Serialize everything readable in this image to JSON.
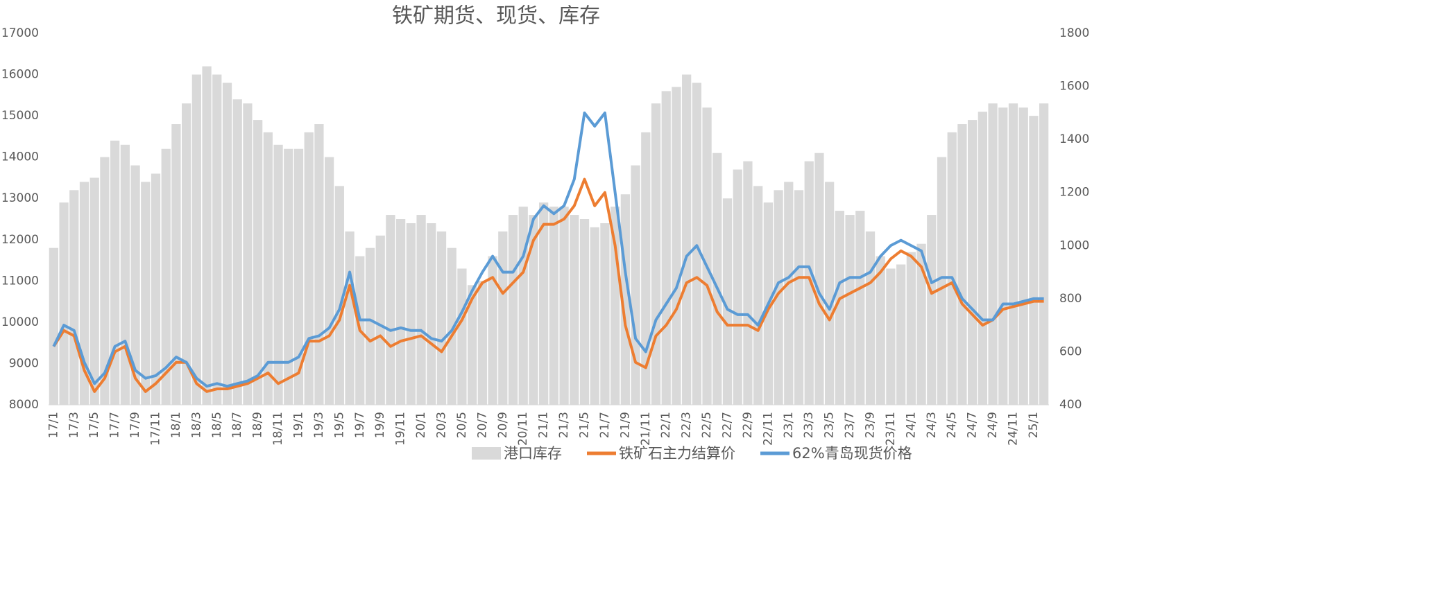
{
  "chart_data": {
    "type": "bar",
    "title": "铁矿期货、现货、库存",
    "categories": [
      "17/1",
      null,
      "17/3",
      null,
      "17/5",
      null,
      "17/7",
      null,
      "17/9",
      null,
      "17/11",
      null,
      "18/1",
      null,
      "18/3",
      null,
      "18/5",
      null,
      "18/7",
      null,
      "18/9",
      null,
      "18/11",
      null,
      "19/1",
      null,
      "19/3",
      null,
      "19/5",
      null,
      "19/7",
      null,
      "19/9",
      null,
      "19/11",
      null,
      "20/1",
      null,
      "20/3",
      null,
      "20/5",
      null,
      "20/7",
      null,
      "20/9",
      null,
      "20/11",
      null,
      "21/1",
      null,
      "21/3",
      null,
      "21/5",
      null,
      "21/7",
      null,
      "21/9",
      null,
      "21/11",
      null,
      "22/1",
      null,
      "22/3",
      null,
      "22/5",
      null,
      "22/7",
      null,
      "22/9",
      null,
      "22/11",
      null,
      "23/1",
      null,
      "23/3",
      null,
      "23/5",
      null,
      "23/7",
      null,
      "23/9",
      null,
      "23/11",
      null,
      "24/1",
      null,
      "24/3",
      null,
      "24/5",
      null,
      "24/7",
      null,
      "24/9",
      null,
      "24/11",
      null,
      "25/1",
      null
    ],
    "series": [
      {
        "name": "港口库存",
        "type": "bar",
        "color": "#d9d9d9",
        "values": [
          11800,
          12900,
          13200,
          13400,
          13500,
          14000,
          14400,
          14300,
          13800,
          13400,
          13600,
          14200,
          14800,
          15300,
          16000,
          16200,
          16000,
          15800,
          15400,
          15300,
          14900,
          14600,
          14300,
          14200,
          14200,
          14600,
          14800,
          14000,
          13300,
          12200,
          11600,
          11800,
          12100,
          12600,
          12500,
          12400,
          12600,
          12400,
          12200,
          11800,
          11300,
          10900,
          11000,
          11600,
          12200,
          12600,
          12800,
          12600,
          12900,
          12800,
          12800,
          12600,
          12500,
          12300,
          12400,
          12800,
          13100,
          13800,
          14600,
          15300,
          15600,
          15700,
          16000,
          15800,
          15200,
          14100,
          13000,
          13700,
          13900,
          13300,
          12900,
          13200,
          13400,
          13200,
          13900,
          14100,
          13400,
          12700,
          12600,
          12700,
          12200,
          11600,
          11300,
          11400,
          11700,
          11900,
          12600,
          14000,
          14600,
          14800,
          14900,
          15100,
          15300,
          15200,
          15300,
          15200,
          15000,
          15300
        ]
      },
      {
        "name": "铁矿石主力结算价",
        "type": "line",
        "axis": "y2",
        "color": "#ed7d31",
        "values": [
          620,
          680,
          660,
          530,
          450,
          500,
          600,
          620,
          500,
          450,
          480,
          520,
          560,
          560,
          480,
          450,
          460,
          460,
          470,
          480,
          500,
          520,
          480,
          500,
          520,
          640,
          640,
          660,
          720,
          850,
          680,
          640,
          660,
          620,
          640,
          650,
          660,
          630,
          600,
          660,
          720,
          800,
          860,
          880,
          820,
          860,
          900,
          1020,
          1080,
          1080,
          1100,
          1150,
          1250,
          1150,
          1200,
          1000,
          700,
          560,
          540,
          660,
          700,
          760,
          860,
          880,
          850,
          750,
          700,
          700,
          700,
          680,
          760,
          820,
          860,
          880,
          880,
          780,
          720,
          800,
          820,
          840,
          860,
          900,
          950,
          980,
          960,
          920,
          820,
          840,
          860,
          780,
          740,
          700,
          720,
          760,
          770,
          780,
          790,
          790
        ]
      },
      {
        "name": "62%青岛现货价格",
        "type": "line",
        "axis": "y2",
        "color": "#5b9bd5",
        "values": [
          620,
          700,
          680,
          560,
          480,
          520,
          620,
          640,
          530,
          500,
          510,
          540,
          580,
          560,
          500,
          470,
          480,
          470,
          480,
          490,
          510,
          560,
          560,
          560,
          580,
          650,
          660,
          690,
          760,
          900,
          720,
          720,
          700,
          680,
          690,
          680,
          680,
          650,
          640,
          680,
          750,
          830,
          900,
          960,
          900,
          900,
          960,
          1100,
          1150,
          1120,
          1150,
          1250,
          1500,
          1450,
          1500,
          1200,
          900,
          650,
          600,
          720,
          780,
          840,
          960,
          1000,
          920,
          840,
          760,
          740,
          740,
          700,
          780,
          860,
          880,
          920,
          920,
          820,
          760,
          860,
          880,
          880,
          900,
          960,
          1000,
          1020,
          1000,
          980,
          860,
          880,
          880,
          800,
          760,
          720,
          720,
          780,
          780,
          790,
          800,
          800
        ]
      }
    ],
    "ylim": [
      8000,
      17000
    ],
    "yticks": [
      8000,
      9000,
      10000,
      11000,
      12000,
      13000,
      14000,
      15000,
      16000,
      17000
    ],
    "y2lim": [
      400,
      1800
    ],
    "y2ticks": [
      400,
      600,
      800,
      1000,
      1200,
      1400,
      1600,
      1800
    ],
    "grid": false,
    "legend": "bottom"
  }
}
